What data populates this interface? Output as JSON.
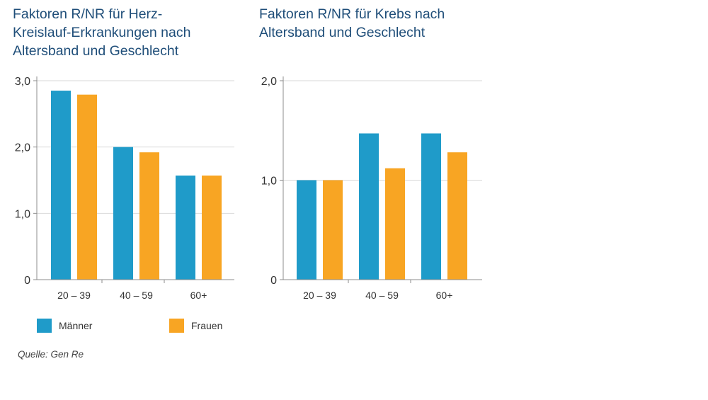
{
  "colors": {
    "men": "#1f9bc9",
    "women": "#f8a523",
    "title": "#1f4e79",
    "grid": "#d9d9d9",
    "axis": "#8c8c8c"
  },
  "chart_data": [
    {
      "type": "bar",
      "title": "Faktoren R/NR für Herz-\nKreislauf-Erkrankungen nach\nAltersband und Geschlecht",
      "categories": [
        "20 – 39",
        "40 – 59",
        "60+"
      ],
      "series": [
        {
          "name": "Männer",
          "values": [
            2.85,
            2.0,
            1.57
          ]
        },
        {
          "name": "Frauen",
          "values": [
            2.79,
            1.92,
            1.57
          ]
        }
      ],
      "y_ticks": [
        0,
        1.0,
        2.0,
        3.0
      ],
      "y_tick_labels": [
        "0",
        "1,0",
        "2,0",
        "3,0"
      ],
      "ylim": [
        0,
        3.0
      ],
      "grid": true,
      "legend": "bottom"
    },
    {
      "type": "bar",
      "title": "Faktoren R/NR für Krebs nach\nAltersband und Geschlecht",
      "categories": [
        "20 – 39",
        "40 – 59",
        "60+"
      ],
      "series": [
        {
          "name": "Männer",
          "values": [
            1.0,
            1.47,
            1.47
          ]
        },
        {
          "name": "Frauen",
          "values": [
            1.0,
            1.12,
            1.28
          ]
        }
      ],
      "y_ticks": [
        0,
        1.0,
        2.0
      ],
      "y_tick_labels": [
        "0",
        "1,0",
        "2,0"
      ],
      "ylim": [
        0,
        2.0
      ],
      "grid": true,
      "legend": "bottom"
    }
  ],
  "legend": {
    "men_label": "Männer",
    "women_label": "Frauen"
  },
  "source": "Quelle: Gen Re"
}
